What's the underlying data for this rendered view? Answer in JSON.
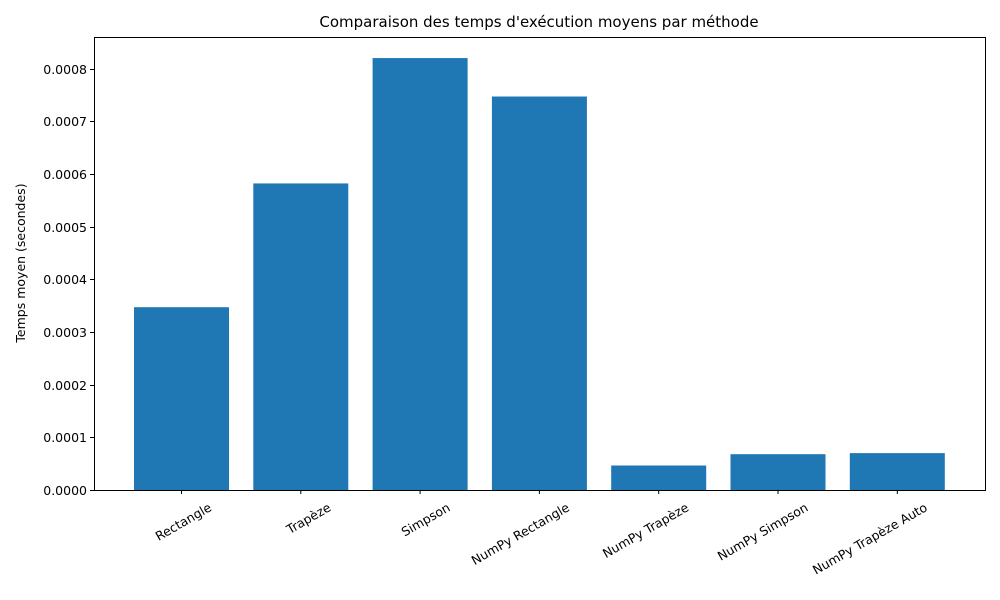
{
  "chart_data": {
    "type": "bar",
    "title": "Comparaison des temps d'exécution moyens par méthode",
    "xlabel": "",
    "ylabel": "Temps moyen (secondes)",
    "categories": [
      "Rectangle",
      "Trapèze",
      "Simpson",
      "NumPy Rectangle",
      "NumPy Trapèze",
      "NumPy Simpson",
      "NumPy Trapèze Auto"
    ],
    "values": [
      0.000347,
      0.000582,
      0.00082,
      0.000747,
      4.65e-05,
      6.8e-05,
      7e-05
    ],
    "ylim": [
      0,
      0.00086
    ],
    "yticks": [
      0,
      0.0001,
      0.0002,
      0.0003,
      0.0004,
      0.0005,
      0.0006,
      0.0007,
      0.0008
    ],
    "ytick_labels": [
      "0.0000",
      "0.0001",
      "0.0002",
      "0.0003",
      "0.0004",
      "0.0005",
      "0.0006",
      "0.0007",
      "0.0008"
    ],
    "bar_color": "#1f77b4",
    "grid": false,
    "legend": "none"
  }
}
